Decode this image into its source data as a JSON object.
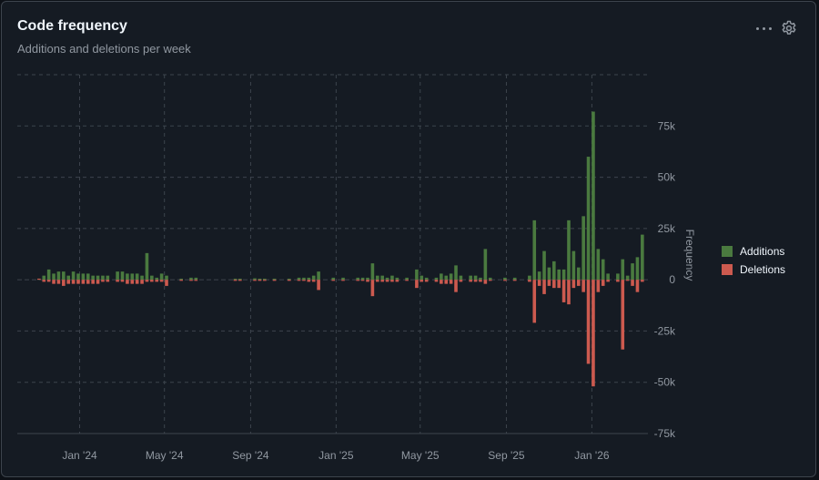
{
  "header": {
    "title": "Code frequency",
    "subtitle": "Additions and deletions per week",
    "menu_icon": "kebab-horizontal-icon",
    "settings_icon": "gear-icon"
  },
  "colors": {
    "additions": "#4a7a3f",
    "deletions": "#cc5a4f",
    "grid": "#3d444d",
    "text": "#9198a1"
  },
  "chart_data": {
    "type": "bar",
    "title": "",
    "xlabel": "",
    "ylabel": "Frequency",
    "ylim": [
      -75000,
      100000
    ],
    "yticks": [
      75000,
      50000,
      25000,
      0,
      -25000,
      -50000,
      -75000
    ],
    "ytick_labels": [
      "75k",
      "50k",
      "25k",
      "0",
      "-25k",
      "-50k",
      "-75k"
    ],
    "xticks": [
      "2024-01-01",
      "2024-05-01",
      "2024-09-01",
      "2025-01-01",
      "2025-05-01",
      "2025-09-01",
      "2026-01-01"
    ],
    "xtick_labels": [
      "Jan '24",
      "May '24",
      "Sep '24",
      "Jan '25",
      "May '25",
      "Sep '25",
      "Jan '26"
    ],
    "xlim": [
      "2023-10-04",
      "2026-03-22"
    ],
    "legend_position": "right",
    "series": [
      {
        "name": "Additions",
        "points": [
          [
            "2023-11-04",
            0
          ],
          [
            "2023-11-11",
            2000
          ],
          [
            "2023-11-18",
            5000
          ],
          [
            "2023-11-25",
            3000
          ],
          [
            "2023-12-02",
            4000
          ],
          [
            "2023-12-09",
            4000
          ],
          [
            "2023-12-16",
            2000
          ],
          [
            "2023-12-23",
            4000
          ],
          [
            "2023-12-30",
            3000
          ],
          [
            "2024-01-06",
            3000
          ],
          [
            "2024-01-13",
            3000
          ],
          [
            "2024-01-20",
            2000
          ],
          [
            "2024-01-27",
            2000
          ],
          [
            "2024-02-03",
            2000
          ],
          [
            "2024-02-10",
            2000
          ],
          [
            "2024-02-24",
            4000
          ],
          [
            "2024-03-02",
            4000
          ],
          [
            "2024-03-09",
            3000
          ],
          [
            "2024-03-16",
            3000
          ],
          [
            "2024-03-23",
            3000
          ],
          [
            "2024-03-30",
            2000
          ],
          [
            "2024-04-06",
            13000
          ],
          [
            "2024-04-13",
            2000
          ],
          [
            "2024-04-20",
            1000
          ],
          [
            "2024-04-27",
            3000
          ],
          [
            "2024-05-04",
            2000
          ],
          [
            "2024-05-25",
            500
          ],
          [
            "2024-06-08",
            1000
          ],
          [
            "2024-06-15",
            1000
          ],
          [
            "2024-08-10",
            300
          ],
          [
            "2024-08-17",
            300
          ],
          [
            "2024-09-07",
            700
          ],
          [
            "2024-09-14",
            500
          ],
          [
            "2024-09-21",
            500
          ],
          [
            "2024-10-05",
            300
          ],
          [
            "2024-10-26",
            300
          ],
          [
            "2024-11-09",
            1000
          ],
          [
            "2024-11-16",
            1000
          ],
          [
            "2024-11-23",
            1000
          ],
          [
            "2024-11-30",
            2000
          ],
          [
            "2024-12-07",
            4000
          ],
          [
            "2024-12-28",
            1000
          ],
          [
            "2025-01-11",
            1000
          ],
          [
            "2025-02-01",
            1000
          ],
          [
            "2025-02-08",
            1000
          ],
          [
            "2025-02-15",
            1000
          ],
          [
            "2025-02-22",
            8000
          ],
          [
            "2025-03-01",
            2000
          ],
          [
            "2025-03-08",
            2000
          ],
          [
            "2025-03-15",
            1000
          ],
          [
            "2025-03-22",
            2000
          ],
          [
            "2025-03-29",
            1000
          ],
          [
            "2025-04-12",
            1000
          ],
          [
            "2025-04-26",
            5000
          ],
          [
            "2025-05-03",
            2000
          ],
          [
            "2025-05-10",
            1000
          ],
          [
            "2025-05-24",
            1000
          ],
          [
            "2025-05-31",
            3000
          ],
          [
            "2025-06-07",
            2000
          ],
          [
            "2025-06-14",
            3000
          ],
          [
            "2025-06-21",
            7000
          ],
          [
            "2025-06-28",
            2000
          ],
          [
            "2025-07-12",
            2000
          ],
          [
            "2025-07-19",
            2000
          ],
          [
            "2025-07-26",
            1000
          ],
          [
            "2025-08-02",
            15000
          ],
          [
            "2025-08-09",
            1000
          ],
          [
            "2025-08-30",
            1000
          ],
          [
            "2025-09-13",
            1000
          ],
          [
            "2025-10-04",
            2000
          ],
          [
            "2025-10-11",
            29000
          ],
          [
            "2025-10-18",
            4000
          ],
          [
            "2025-10-25",
            14000
          ],
          [
            "2025-11-01",
            6000
          ],
          [
            "2025-11-08",
            9000
          ],
          [
            "2025-11-15",
            5000
          ],
          [
            "2025-11-22",
            5000
          ],
          [
            "2025-11-29",
            29000
          ],
          [
            "2025-12-06",
            14000
          ],
          [
            "2025-12-13",
            6000
          ],
          [
            "2025-12-20",
            31000
          ],
          [
            "2025-12-27",
            60000
          ],
          [
            "2026-01-03",
            82000
          ],
          [
            "2026-01-10",
            15000
          ],
          [
            "2026-01-17",
            10000
          ],
          [
            "2026-01-24",
            3000
          ],
          [
            "2026-02-07",
            3000
          ],
          [
            "2026-02-14",
            10000
          ],
          [
            "2026-02-21",
            2000
          ],
          [
            "2026-02-28",
            8000
          ],
          [
            "2026-03-07",
            11000
          ],
          [
            "2026-03-14",
            22000
          ]
        ]
      },
      {
        "name": "Deletions",
        "points": [
          [
            "2023-11-04",
            0
          ],
          [
            "2023-11-11",
            -1000
          ],
          [
            "2023-11-18",
            -1000
          ],
          [
            "2023-11-25",
            -2000
          ],
          [
            "2023-12-02",
            -2000
          ],
          [
            "2023-12-09",
            -3000
          ],
          [
            "2023-12-16",
            -2000
          ],
          [
            "2023-12-23",
            -2000
          ],
          [
            "2023-12-30",
            -2000
          ],
          [
            "2024-01-06",
            -2000
          ],
          [
            "2024-01-13",
            -2000
          ],
          [
            "2024-01-20",
            -2000
          ],
          [
            "2024-01-27",
            -2000
          ],
          [
            "2024-02-03",
            -1000
          ],
          [
            "2024-02-10",
            -1000
          ],
          [
            "2024-02-24",
            -1000
          ],
          [
            "2024-03-02",
            -1000
          ],
          [
            "2024-03-09",
            -2000
          ],
          [
            "2024-03-16",
            -2000
          ],
          [
            "2024-03-23",
            -2000
          ],
          [
            "2024-03-30",
            -2000
          ],
          [
            "2024-04-06",
            -1000
          ],
          [
            "2024-04-13",
            -1000
          ],
          [
            "2024-04-20",
            -1000
          ],
          [
            "2024-04-27",
            -1000
          ],
          [
            "2024-05-04",
            -3000
          ],
          [
            "2024-05-25",
            -500
          ],
          [
            "2024-06-08",
            -500
          ],
          [
            "2024-06-15",
            -500
          ],
          [
            "2024-08-10",
            -300
          ],
          [
            "2024-08-17",
            -300
          ],
          [
            "2024-09-07",
            -500
          ],
          [
            "2024-09-14",
            -500
          ],
          [
            "2024-09-21",
            -500
          ],
          [
            "2024-10-05",
            -300
          ],
          [
            "2024-10-26",
            -300
          ],
          [
            "2024-11-09",
            -500
          ],
          [
            "2024-11-16",
            -500
          ],
          [
            "2024-11-23",
            -1000
          ],
          [
            "2024-11-30",
            -1000
          ],
          [
            "2024-12-07",
            -5000
          ],
          [
            "2024-12-28",
            -500
          ],
          [
            "2025-01-11",
            -500
          ],
          [
            "2025-02-01",
            -500
          ],
          [
            "2025-02-08",
            -500
          ],
          [
            "2025-02-15",
            -1000
          ],
          [
            "2025-02-22",
            -8000
          ],
          [
            "2025-03-01",
            -1000
          ],
          [
            "2025-03-08",
            -1000
          ],
          [
            "2025-03-15",
            -1000
          ],
          [
            "2025-03-22",
            -1000
          ],
          [
            "2025-03-29",
            -1000
          ],
          [
            "2025-04-12",
            -500
          ],
          [
            "2025-04-26",
            -4000
          ],
          [
            "2025-05-03",
            -1000
          ],
          [
            "2025-05-10",
            -1000
          ],
          [
            "2025-05-24",
            -1000
          ],
          [
            "2025-05-31",
            -2000
          ],
          [
            "2025-06-07",
            -2000
          ],
          [
            "2025-06-14",
            -2000
          ],
          [
            "2025-06-21",
            -6000
          ],
          [
            "2025-06-28",
            -1000
          ],
          [
            "2025-07-12",
            -1000
          ],
          [
            "2025-07-19",
            -1000
          ],
          [
            "2025-07-26",
            -1000
          ],
          [
            "2025-08-02",
            -2000
          ],
          [
            "2025-08-09",
            -500
          ],
          [
            "2025-08-30",
            -500
          ],
          [
            "2025-09-13",
            -500
          ],
          [
            "2025-10-04",
            -1000
          ],
          [
            "2025-10-11",
            -21000
          ],
          [
            "2025-10-18",
            -3000
          ],
          [
            "2025-10-25",
            -7000
          ],
          [
            "2025-11-01",
            -3000
          ],
          [
            "2025-11-08",
            -4000
          ],
          [
            "2025-11-15",
            -4000
          ],
          [
            "2025-11-22",
            -11000
          ],
          [
            "2025-11-29",
            -12000
          ],
          [
            "2025-12-06",
            -4000
          ],
          [
            "2025-12-13",
            -3000
          ],
          [
            "2025-12-20",
            -6000
          ],
          [
            "2025-12-27",
            -41000
          ],
          [
            "2026-01-03",
            -52000
          ],
          [
            "2026-01-10",
            -6000
          ],
          [
            "2026-01-17",
            -3000
          ],
          [
            "2026-01-24",
            -1000
          ],
          [
            "2026-02-07",
            -1000
          ],
          [
            "2026-02-14",
            -34000
          ],
          [
            "2026-02-21",
            -500
          ],
          [
            "2026-02-28",
            -3000
          ],
          [
            "2026-03-07",
            -6000
          ],
          [
            "2026-03-14",
            -1000
          ]
        ]
      }
    ]
  }
}
